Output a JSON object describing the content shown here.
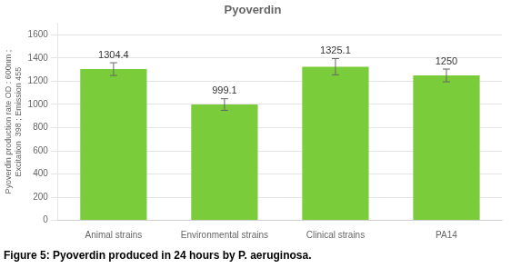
{
  "chart_data": {
    "type": "bar",
    "title": "Pyoverdin",
    "categories": [
      "Animal strains",
      "Environmental strains",
      "Clinical strains",
      "PA14"
    ],
    "values": [
      1304.4,
      999.1,
      1325.1,
      1250
    ],
    "errors": [
      55,
      50,
      70,
      55
    ],
    "color": "#7acc3a",
    "ylabel": [
      "Pyoverdin production rate OD : 600nm ;",
      "Excitation  398 ; Emission 455"
    ],
    "caption": "Figure 5: Pyoverdin produced in 24 hours by P. aeruginosa.",
    "ylim": [
      0,
      1700
    ],
    "yticks": [
      0,
      200,
      400,
      600,
      800,
      1000,
      1200,
      1400,
      1600
    ],
    "grid": true,
    "data_labels": true
  }
}
